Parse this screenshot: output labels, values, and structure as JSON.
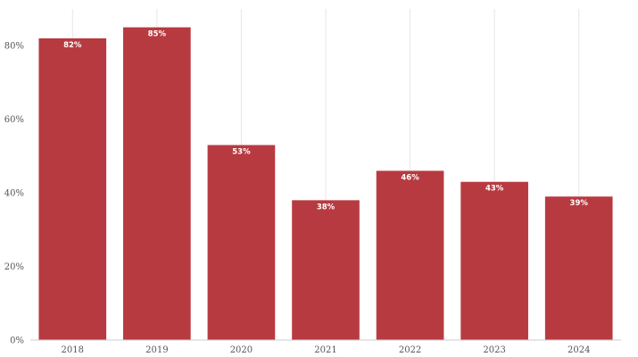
{
  "chart_data": {
    "type": "bar",
    "title": "",
    "xlabel": "",
    "ylabel": "",
    "categories": [
      "2018",
      "2019",
      "2020",
      "2021",
      "2022",
      "2023",
      "2024"
    ],
    "values": [
      82,
      85,
      53,
      38,
      46,
      43,
      39
    ],
    "value_labels": [
      "82%",
      "85%",
      "53%",
      "38%",
      "46%",
      "43%",
      "39%"
    ],
    "y_ticks": [
      0,
      20,
      40,
      60,
      80
    ],
    "y_tick_labels": [
      "0%",
      "20%",
      "40%",
      "60%",
      "80%"
    ],
    "ylim": [
      0,
      90
    ],
    "grid": "vertical",
    "bar_color": "#b83a41",
    "grid_color": "#e6e6e6"
  }
}
